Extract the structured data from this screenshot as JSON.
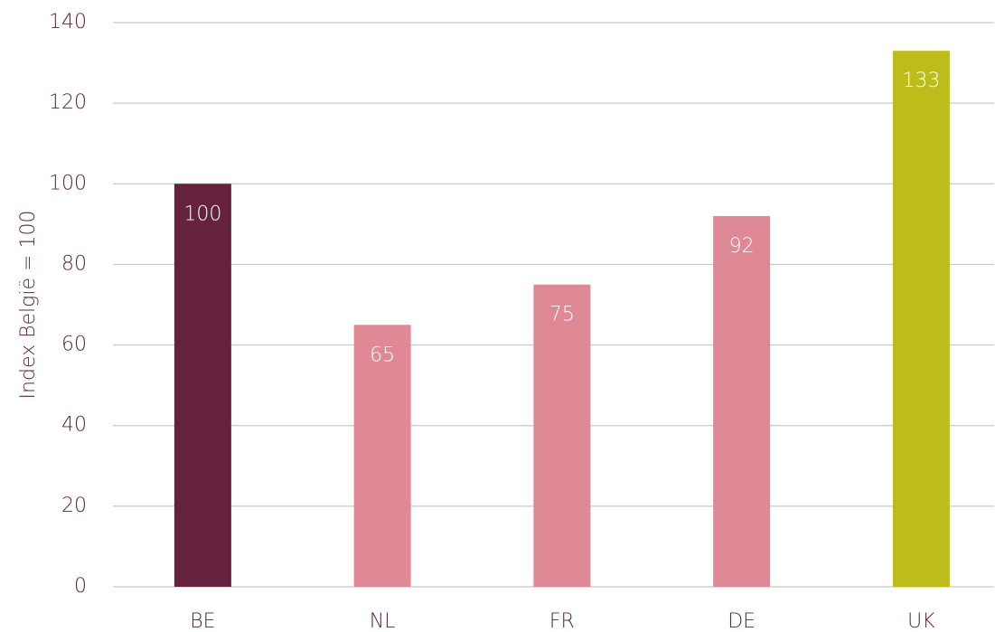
{
  "chart_data": {
    "type": "bar",
    "y_label": "Index België = 100",
    "categories": [
      "BE",
      "NL",
      "FR",
      "DE",
      "UK"
    ],
    "values": [
      100,
      65,
      75,
      92,
      133
    ],
    "colors": [
      "#64223f",
      "#df8896",
      "#df8896",
      "#df8896",
      "#bcbc1a"
    ],
    "ylim": [
      0,
      140
    ],
    "yticks": [
      0,
      20,
      40,
      60,
      80,
      100,
      120,
      140
    ],
    "grid": true
  }
}
